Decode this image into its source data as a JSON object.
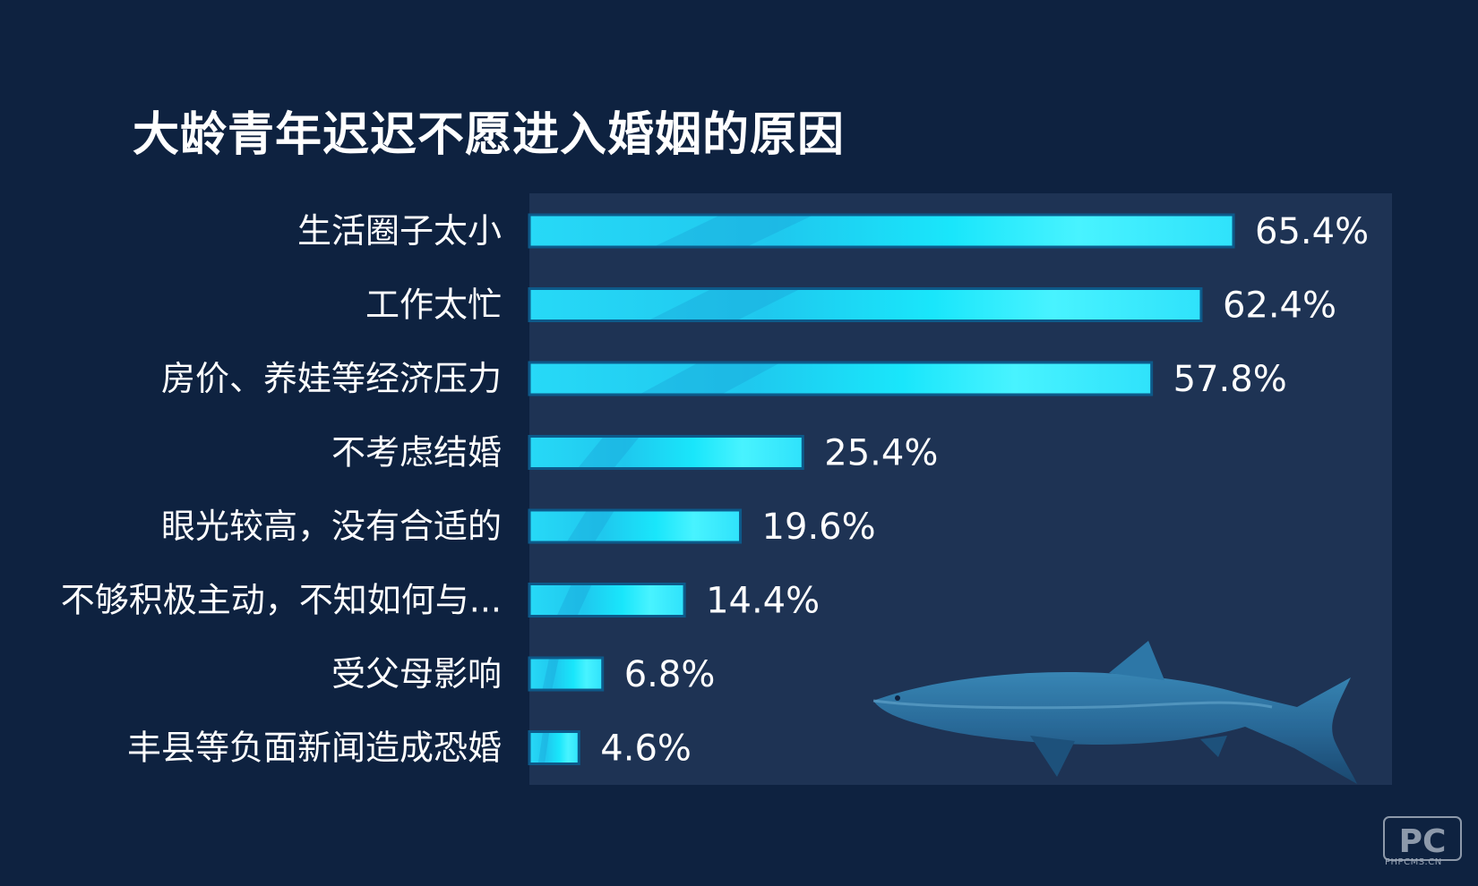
{
  "chart_data": {
    "type": "bar",
    "orientation": "horizontal",
    "title": "大龄青年迟迟不愿进入婚姻的原因",
    "categories": [
      "生活圈子太小",
      "工作太忙",
      "房价、养娃等经济压力",
      "不考虑结婚",
      "眼光较高，没有合适的",
      "不够积极主动，不知如何与...",
      "受父母影响",
      "丰县等负面新闻造成恐婚"
    ],
    "values": [
      65.4,
      62.4,
      57.8,
      25.4,
      19.6,
      14.4,
      6.8,
      4.6
    ],
    "value_labels": [
      "65.4%",
      "62.4%",
      "57.8%",
      "25.4%",
      "19.6%",
      "14.4%",
      "6.8%",
      "4.6%"
    ],
    "unit": "%",
    "xlim": [
      0,
      80
    ],
    "grid": false,
    "legend": "none"
  },
  "colors": {
    "background": "#0e2240",
    "plot_area": "#1e3354",
    "bar_main": "#22d6f5",
    "bar_light": "#4ef0ff",
    "bar_dark": "#1aa8d8",
    "bar_border": "#0d5a8a",
    "text": "#ffffff"
  },
  "watermark": {
    "logo": "PC",
    "text": "PHPCMS.CN"
  }
}
